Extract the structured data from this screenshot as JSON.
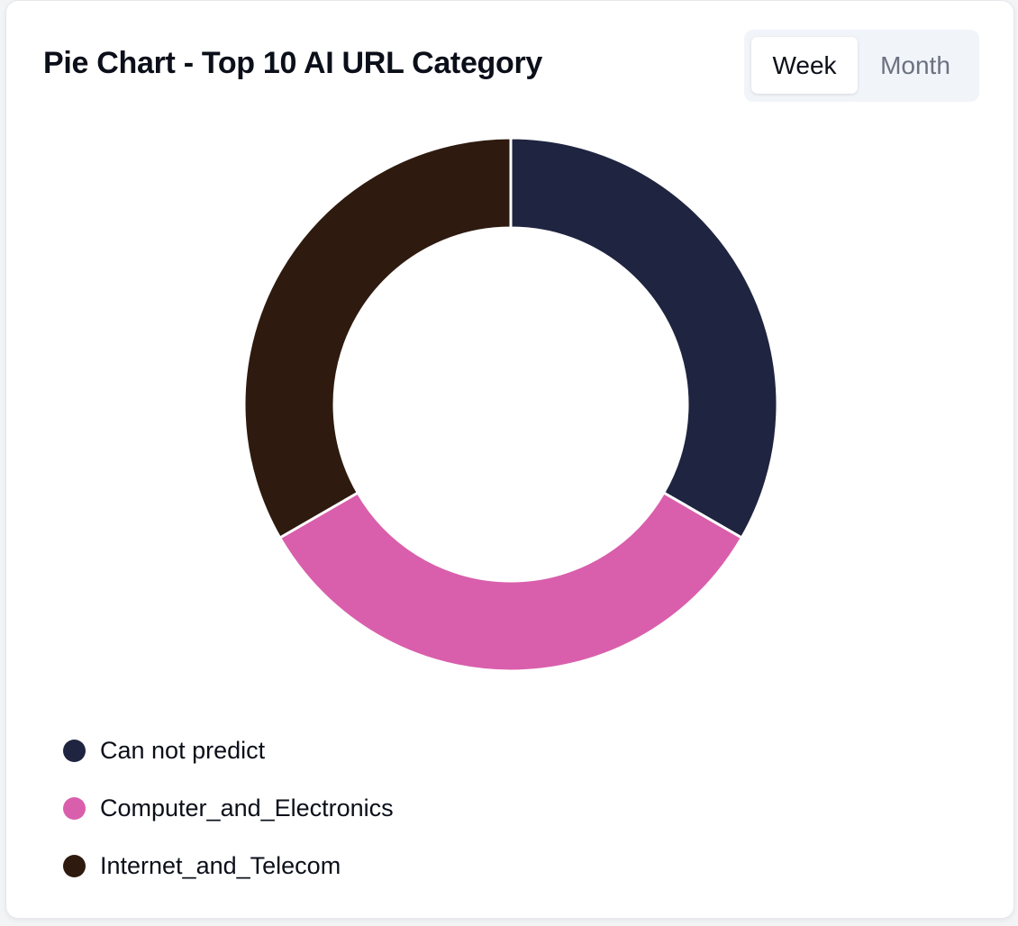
{
  "header": {
    "title": "Pie Chart - Top 10 AI URL Category"
  },
  "toggle": {
    "week_label": "Week",
    "month_label": "Month",
    "selected": "Week"
  },
  "colors": {
    "card_bg": "#ffffff",
    "toggle_bg": "#f1f4f9",
    "active_text": "#0b0f19",
    "inactive_text": "#6b7280"
  },
  "chart_data": {
    "type": "pie",
    "title": "Pie Chart - Top 10 AI URL Category",
    "donut": true,
    "categories": [
      "Can not predict",
      "Computer_and_Electronics",
      "Internet_and_Telecom"
    ],
    "values": [
      1,
      1,
      1
    ],
    "colors": [
      "#1f2440",
      "#d95fac",
      "#2e1a0f"
    ],
    "legend_position": "bottom-left"
  }
}
